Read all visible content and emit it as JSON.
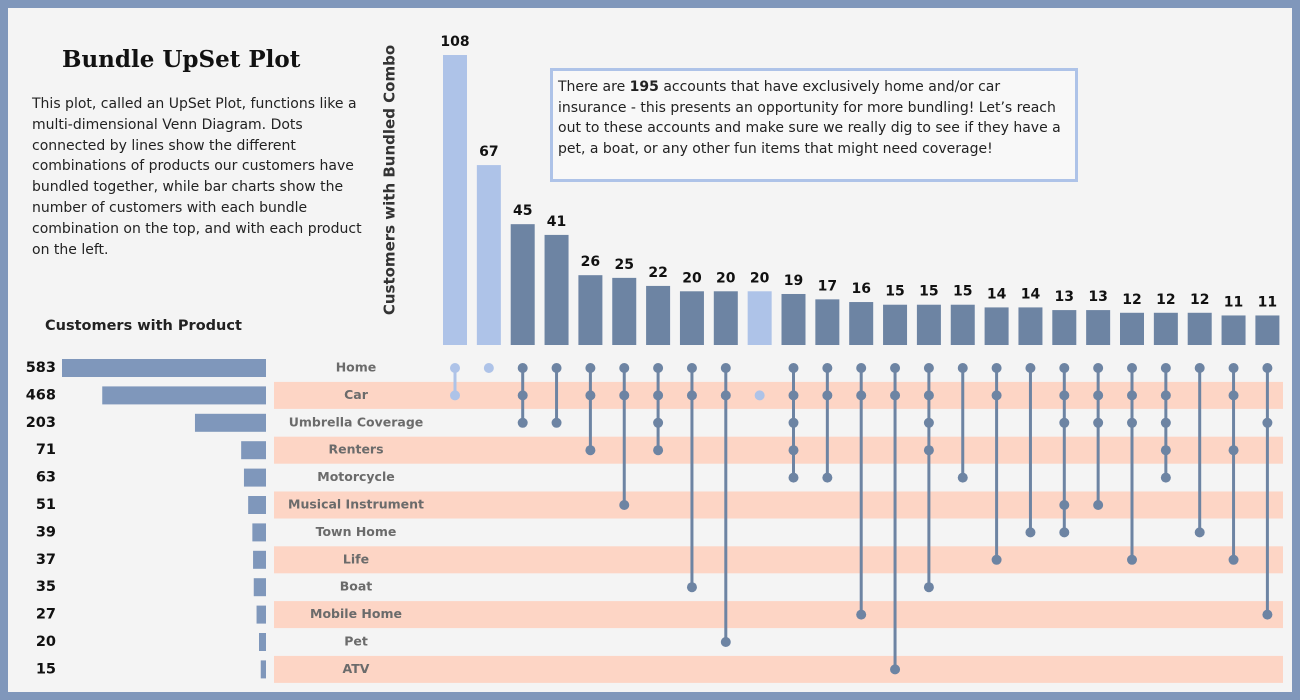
{
  "chart_data": {
    "type": "upset",
    "title": "Bundle UpSet Plot",
    "description": "This plot, called an UpSet Plot, functions like a multi-dimensional Venn Diagram. Dots connected by lines show the different combinations of products our customers have bundled together, while bar charts show the number of customers with each bundle combination on the top, and with each product on the left.",
    "annotation": [
      "There are ",
      "195",
      " accounts that have exclusively home and/or car insurance - this presents an opportunity for more bundling! Let’s reach out to these accounts and make sure we really dig to see if they have a pet, a boat, or any other fun items that might need coverage!"
    ],
    "y_label": "Customers with Bundled Combo",
    "set_label": "Customers with Product",
    "set_names": [
      "Home",
      "Car",
      "Umbrella Coverage",
      "Renters",
      "Motorcycle",
      "Musical Instrument",
      "Town Home",
      "Life",
      "Boat",
      "Mobile Home",
      "Pet",
      "ATV"
    ],
    "set_sizes": [
      583,
      468,
      203,
      71,
      63,
      51,
      39,
      37,
      35,
      27,
      20,
      15
    ],
    "set_color": "#7f97bb",
    "values": [
      108,
      67,
      45,
      41,
      26,
      25,
      22,
      20,
      20,
      20,
      19,
      17,
      16,
      15,
      15,
      15,
      14,
      14,
      13,
      13,
      12,
      12,
      12,
      11,
      11
    ],
    "memberships": [
      [
        0,
        1
      ],
      [
        0
      ],
      [
        0,
        1,
        2
      ],
      [
        0,
        2
      ],
      [
        0,
        1,
        3
      ],
      [
        0,
        1,
        5
      ],
      [
        0,
        1,
        2,
        3
      ],
      [
        0,
        1,
        8
      ],
      [
        0,
        1,
        10
      ],
      [
        1
      ],
      [
        0,
        1,
        2,
        3,
        4
      ],
      [
        0,
        1,
        4
      ],
      [
        0,
        1,
        9
      ],
      [
        0,
        1,
        11
      ],
      [
        0,
        1,
        2,
        3,
        8
      ],
      [
        0,
        4
      ],
      [
        0,
        1,
        7
      ],
      [
        0,
        6
      ],
      [
        0,
        1,
        2,
        5,
        6
      ],
      [
        0,
        1,
        2,
        5
      ],
      [
        0,
        1,
        2,
        7
      ],
      [
        0,
        1,
        2,
        3,
        4
      ],
      [
        0,
        6
      ],
      [
        0,
        1,
        3,
        7
      ],
      [
        0,
        2,
        9
      ]
    ],
    "colors": [
      "#aec3e8",
      "#aec3e8",
      "#6d84a3",
      "#6d84a3",
      "#6d84a3",
      "#6d84a3",
      "#6d84a3",
      "#6d84a3",
      "#6d84a3",
      "#aec3e8",
      "#6d84a3",
      "#6d84a3",
      "#6d84a3",
      "#6d84a3",
      "#6d84a3",
      "#6d84a3",
      "#6d84a3",
      "#6d84a3",
      "#6d84a3",
      "#6d84a3",
      "#6d84a3",
      "#6d84a3",
      "#6d84a3",
      "#6d84a3",
      "#6d84a3"
    ],
    "row_band_color": "#fdd5c5"
  }
}
